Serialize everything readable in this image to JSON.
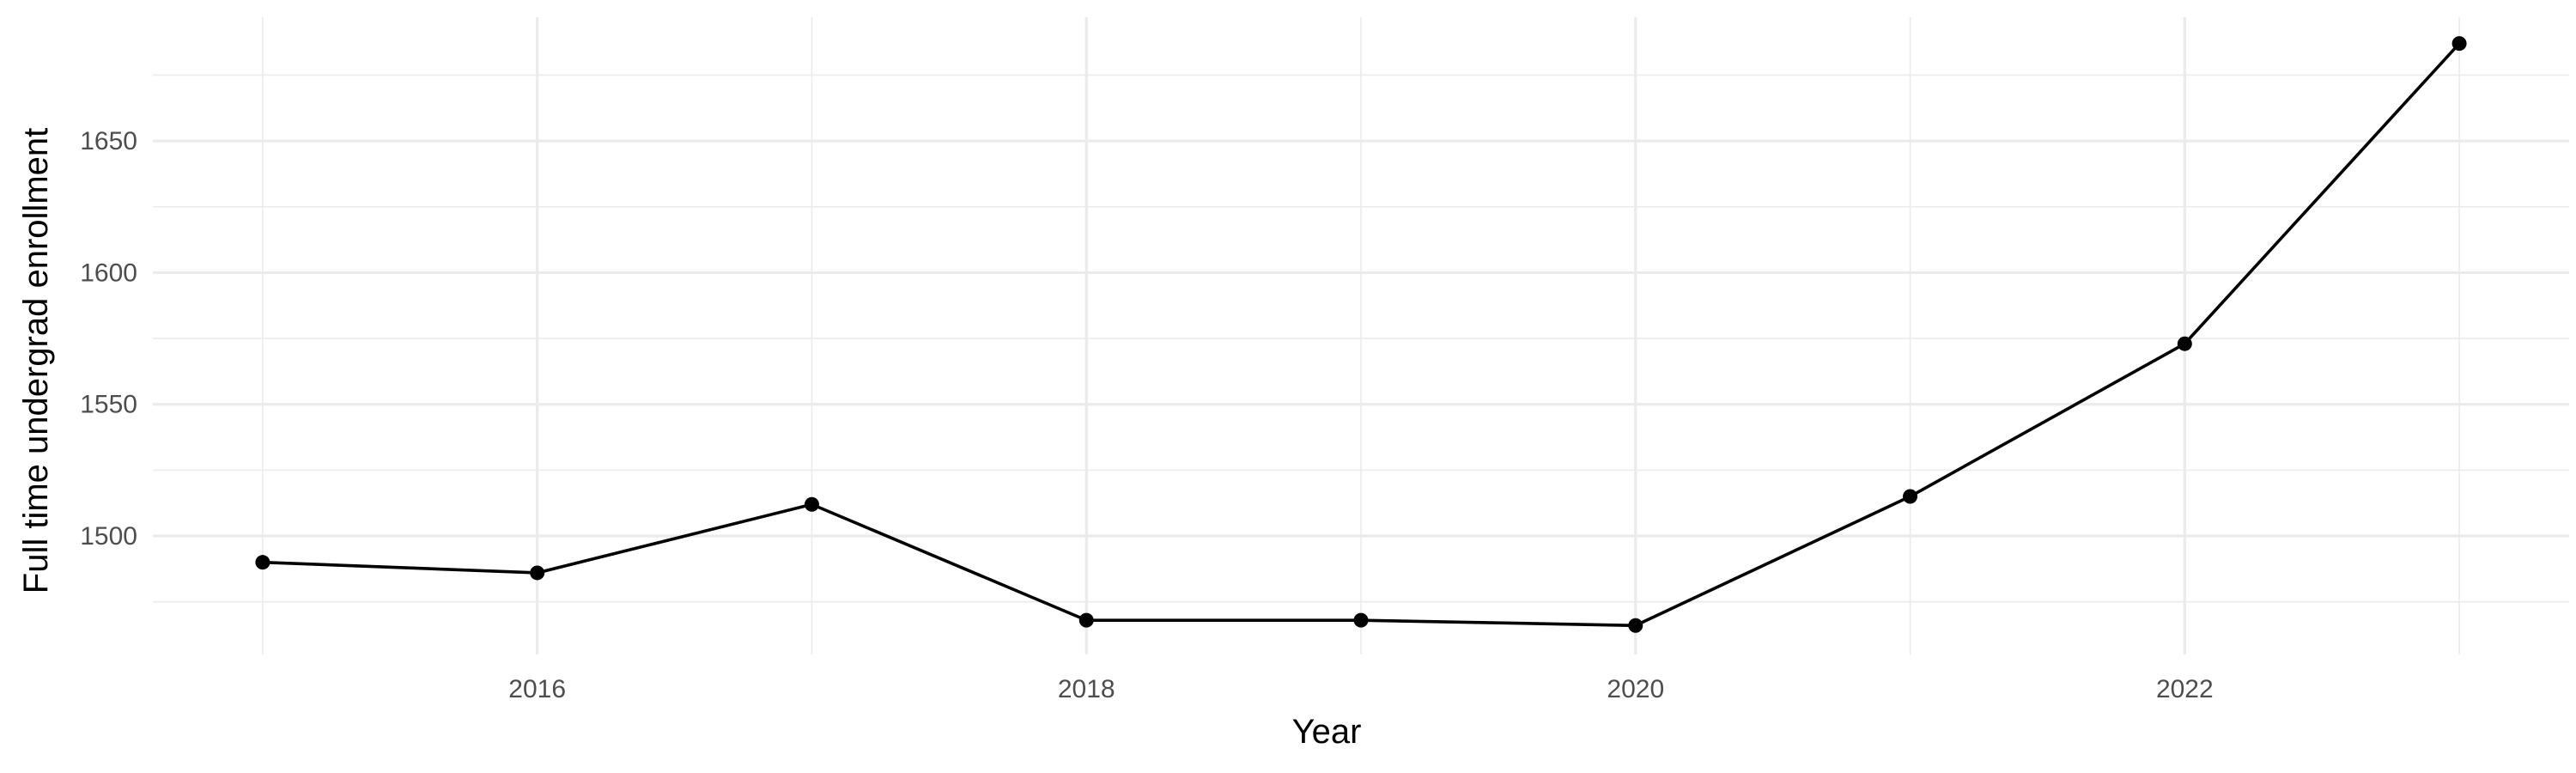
{
  "chart_data": {
    "type": "line",
    "title": "",
    "xlabel": "Year",
    "ylabel": "Full time undergrad enrollment",
    "x": [
      2015,
      2016,
      2017,
      2018,
      2019,
      2020,
      2021,
      2022,
      2023
    ],
    "series": [
      {
        "values": [
          1490,
          1486,
          1512,
          1468,
          1468,
          1466,
          1515,
          1573,
          1687
        ]
      }
    ],
    "xlim": [
      2014.6,
      2023.4
    ],
    "ylim": [
      1455,
      1697
    ],
    "x_major_ticks": [
      2016,
      2018,
      2020,
      2022
    ],
    "x_tick_labels": [
      "2016",
      "2018",
      "2020",
      "2022"
    ],
    "x_minor_ticks": [
      2015,
      2017,
      2019,
      2021,
      2023
    ],
    "y_major_ticks": [
      1500,
      1550,
      1600,
      1650
    ],
    "y_tick_labels": [
      "1500",
      "1550",
      "1600",
      "1650"
    ],
    "y_minor_ticks": [
      1475,
      1525,
      1575,
      1625,
      1675
    ],
    "grid": true,
    "legend": "none",
    "colors": {
      "line": "#000000",
      "point": "#000000",
      "grid": "#ebebeb",
      "tick_text": "#4d4d4d"
    }
  }
}
